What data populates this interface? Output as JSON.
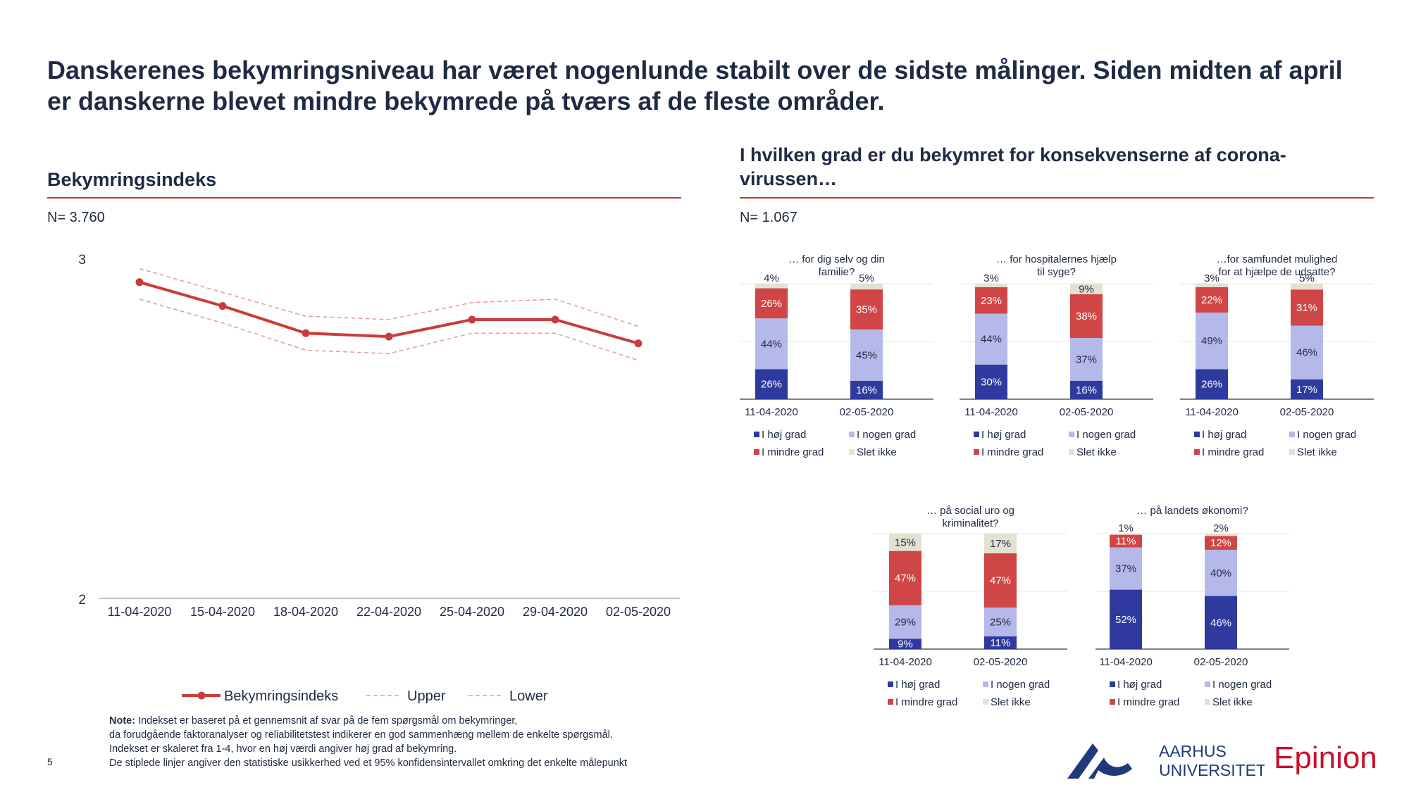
{
  "headline": "Danskerenes bekymringsniveau har været nogenlunde stabilt over de sidste målinger. Siden midten af april er danskerne blevet mindre bekymrede på tværs af de fleste områder.",
  "left": {
    "title": "Bekymringsindeks",
    "n": "N= 3.760"
  },
  "right": {
    "title": "I hvilken grad er du bekymret for konsekvenserne af corona-virussen…",
    "n": "N= 1.067"
  },
  "colors": {
    "high": "#2e3a9e",
    "some": "#b5b9ea",
    "less": "#d04545",
    "none": "#e4e1d2",
    "line": "#cc3b3b",
    "rule": "#c0392b"
  },
  "legend_labels": [
    "I høj grad",
    "I nogen grad",
    "I mindre grad",
    "Slet ikke"
  ],
  "note": {
    "bold": "Note:",
    "line1": " Indekset er baseret på et gennemsnit af svar på de fem spørgsmål om bekymringer,",
    "line2": "da forudgående faktoranalyser og reliabilitetstest indikerer en god sammenhæng mellem de enkelte spørgsmål.",
    "line3": "Indekset er skaleret fra 1-4, hvor en høj værdi angiver høj grad af bekymring.",
    "line4": "De stiplede linjer angiver den statistiske usikkerhed ved et 95% konfidensintervallet omkring det enkelte målepunkt"
  },
  "page_number": "5",
  "logos": {
    "au_line1": "AARHUS",
    "au_line2": "UNIVERSITET",
    "epinion": "Epinion"
  },
  "chart_data": [
    {
      "type": "line",
      "x": [
        "11-04-2020",
        "15-04-2020",
        "18-04-2020",
        "22-04-2020",
        "25-04-2020",
        "29-04-2020",
        "02-05-2020"
      ],
      "ylim": [
        2,
        3
      ],
      "ytick_labels": [
        "3",
        "2"
      ],
      "series": [
        {
          "name": "Bekymringsindeks",
          "values": [
            2.93,
            2.86,
            2.78,
            2.77,
            2.82,
            2.82,
            2.75
          ]
        },
        {
          "name": "Upper",
          "values": [
            2.97,
            2.9,
            2.83,
            2.82,
            2.87,
            2.88,
            2.8
          ]
        },
        {
          "name": "Lower",
          "values": [
            2.88,
            2.81,
            2.73,
            2.72,
            2.78,
            2.78,
            2.7
          ]
        }
      ]
    },
    {
      "type": "bar",
      "stacked": true,
      "title_lines": [
        "… for dig selv og din",
        "familie?"
      ],
      "categories": [
        "11-04-2020",
        "02-05-2020"
      ],
      "series": [
        {
          "name": "I høj grad",
          "values": [
            26,
            16
          ]
        },
        {
          "name": "I nogen grad",
          "values": [
            44,
            45
          ]
        },
        {
          "name": "I mindre grad",
          "values": [
            26,
            35
          ]
        },
        {
          "name": "Slet ikke",
          "values": [
            4,
            5
          ]
        }
      ]
    },
    {
      "type": "bar",
      "stacked": true,
      "title_lines": [
        "… for hospitalernes hjælp",
        "til syge?"
      ],
      "categories": [
        "11-04-2020",
        "02-05-2020"
      ],
      "series": [
        {
          "name": "I høj grad",
          "values": [
            30,
            16
          ]
        },
        {
          "name": "I nogen grad",
          "values": [
            44,
            37
          ]
        },
        {
          "name": "I mindre grad",
          "values": [
            23,
            38
          ]
        },
        {
          "name": "Slet ikke",
          "values": [
            3,
            9
          ]
        }
      ]
    },
    {
      "type": "bar",
      "stacked": true,
      "title_lines": [
        "…for samfundet mulighed",
        "for at hjælpe de udsatte?"
      ],
      "categories": [
        "11-04-2020",
        "02-05-2020"
      ],
      "series": [
        {
          "name": "I høj grad",
          "values": [
            26,
            17
          ]
        },
        {
          "name": "I nogen grad",
          "values": [
            49,
            46
          ]
        },
        {
          "name": "I mindre grad",
          "values": [
            22,
            31
          ]
        },
        {
          "name": "Slet ikke",
          "values": [
            3,
            5
          ]
        }
      ]
    },
    {
      "type": "bar",
      "stacked": true,
      "title_lines": [
        "… på social uro og",
        "kriminalitet?"
      ],
      "categories": [
        "11-04-2020",
        "02-05-2020"
      ],
      "series": [
        {
          "name": "I høj grad",
          "values": [
            9,
            11
          ]
        },
        {
          "name": "I nogen grad",
          "values": [
            29,
            25
          ]
        },
        {
          "name": "I mindre grad",
          "values": [
            47,
            47
          ]
        },
        {
          "name": "Slet ikke",
          "values": [
            15,
            17
          ]
        }
      ]
    },
    {
      "type": "bar",
      "stacked": true,
      "title_lines": [
        "… på landets økonomi?"
      ],
      "categories": [
        "11-04-2020",
        "02-05-2020"
      ],
      "series": [
        {
          "name": "I høj grad",
          "values": [
            52,
            46
          ]
        },
        {
          "name": "I nogen grad",
          "values": [
            37,
            40
          ]
        },
        {
          "name": "I mindre grad",
          "values": [
            11,
            12
          ]
        },
        {
          "name": "Slet ikke",
          "values": [
            1,
            2
          ]
        }
      ]
    }
  ]
}
